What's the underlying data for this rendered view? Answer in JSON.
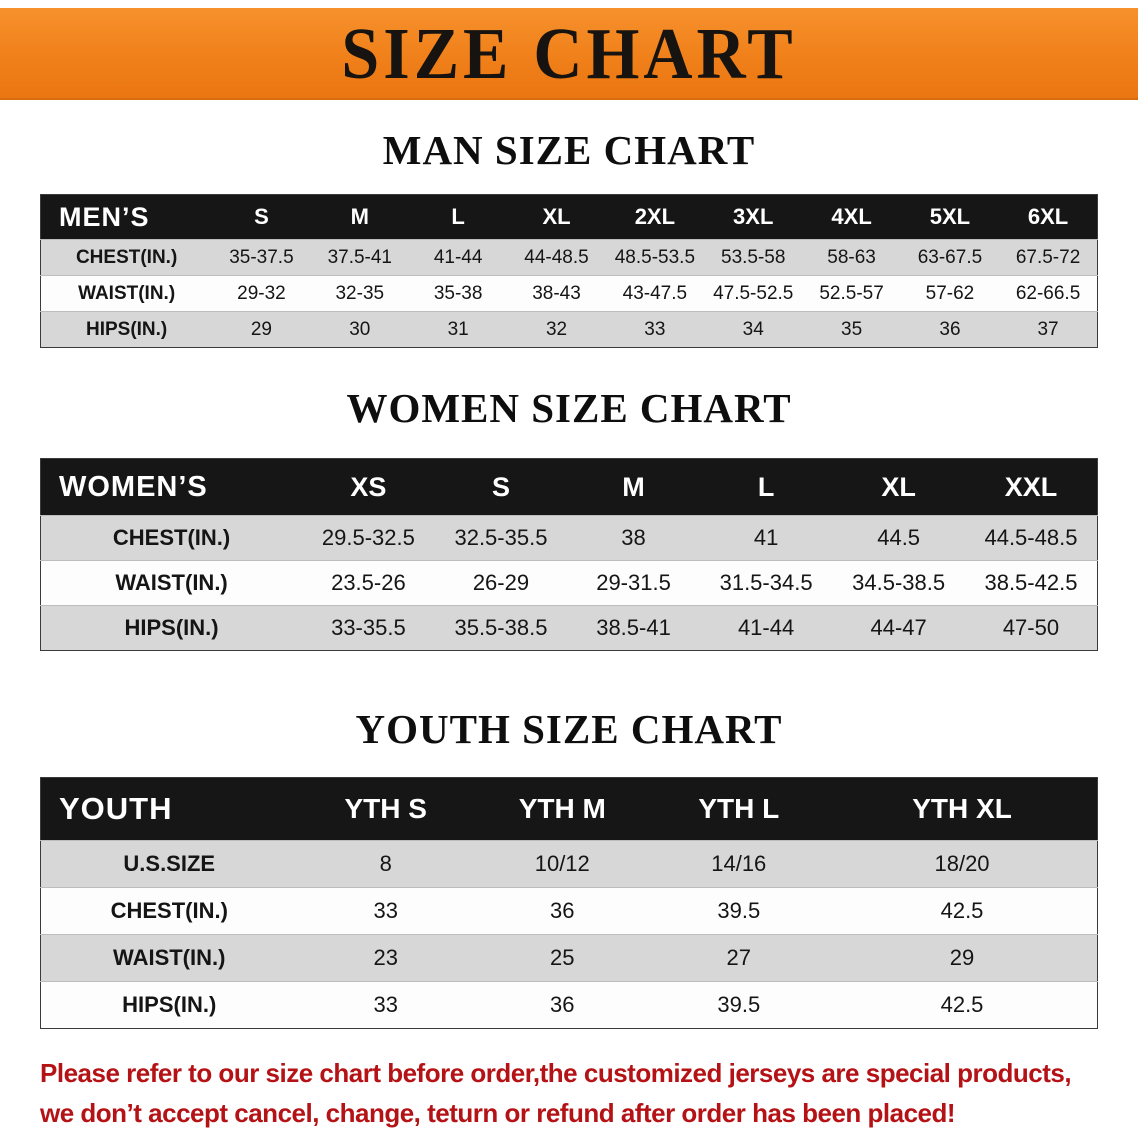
{
  "banner": {
    "title": "SIZE CHART",
    "bg_color": "#F0801A"
  },
  "sections": [
    {
      "heading": "MAN SIZE CHART",
      "table": {
        "header": [
          "MEN’S",
          "S",
          "M",
          "L",
          "XL",
          "2XL",
          "3XL",
          "4XL",
          "5XL",
          "6XL"
        ],
        "rows": [
          [
            "CHEST(IN.)",
            "35-37.5",
            "37.5-41",
            "41-44",
            "44-48.5",
            "48.5-53.5",
            "53.5-58",
            "58-63",
            "63-67.5",
            "67.5-72"
          ],
          [
            "WAIST(IN.)",
            "29-32",
            "32-35",
            "35-38",
            "38-43",
            "43-47.5",
            "47.5-52.5",
            "52.5-57",
            "57-62",
            "62-66.5"
          ],
          [
            "HIPS(IN.)",
            "29",
            "30",
            "31",
            "32",
            "33",
            "34",
            "35",
            "36",
            "37"
          ]
        ]
      }
    },
    {
      "heading": "WOMEN SIZE CHART",
      "table": {
        "header": [
          "WOMEN’S",
          "XS",
          "S",
          "M",
          "L",
          "XL",
          "XXL"
        ],
        "rows": [
          [
            "CHEST(IN.)",
            "29.5-32.5",
            "32.5-35.5",
            "38",
            "41",
            "44.5",
            "44.5-48.5"
          ],
          [
            "WAIST(IN.)",
            "23.5-26",
            "26-29",
            "29-31.5",
            "31.5-34.5",
            "34.5-38.5",
            "38.5-42.5"
          ],
          [
            "HIPS(IN.)",
            "33-35.5",
            "35.5-38.5",
            "38.5-41",
            "41-44",
            "44-47",
            "47-50"
          ]
        ]
      }
    },
    {
      "heading": "YOUTH SIZE CHART",
      "table": {
        "header": [
          "YOUTH",
          "YTH S",
          "YTH M",
          "YTH L",
          "YTH XL"
        ],
        "rows": [
          [
            "U.S.SIZE",
            "8",
            "10/12",
            "14/16",
            "18/20"
          ],
          [
            "CHEST(IN.)",
            "33",
            "36",
            "39.5",
            "42.5"
          ],
          [
            "WAIST(IN.)",
            "23",
            "25",
            "27",
            "29"
          ],
          [
            "HIPS(IN.)",
            "33",
            "36",
            "39.5",
            "42.5"
          ]
        ]
      }
    }
  ],
  "disclaimer": {
    "line1": "Please refer to our size chart before order,the customized jerseys are special products,",
    "line2": "we don’t accept cancel, change, teturn or refund after order has been placed!",
    "color": "#b51216"
  }
}
